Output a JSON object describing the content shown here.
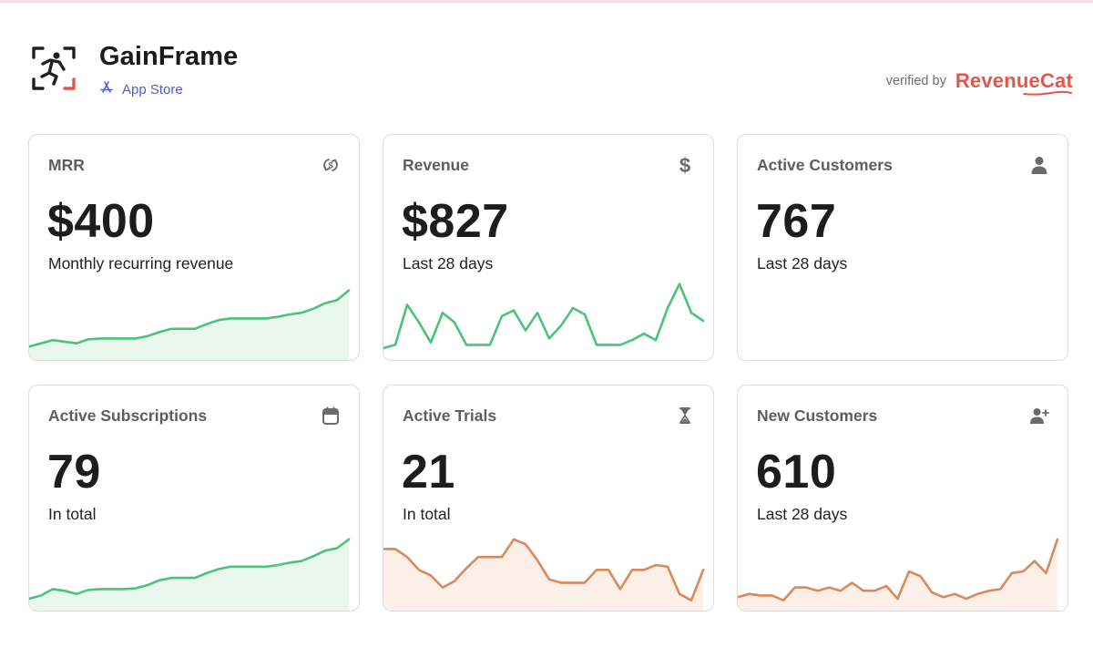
{
  "header": {
    "app_name": "GainFrame",
    "store_label": "App Store",
    "verified_label": "verified by",
    "verifier_brand": "RevenueCat"
  },
  "colors": {
    "accent_blue": "#4b5fd6",
    "brand_red": "#e2574c",
    "green_series": "#4cc27a",
    "orange_series": "#d98a5b"
  },
  "cards": [
    {
      "title": "MRR",
      "value": "$400",
      "subtitle": "Monthly recurring revenue",
      "icon": "refresh-dollar-icon"
    },
    {
      "title": "Revenue",
      "value": "$827",
      "subtitle": "Last 28 days",
      "icon": "dollar-icon"
    },
    {
      "title": "Active Customers",
      "value": "767",
      "subtitle": "Last 28 days",
      "icon": "user-icon"
    },
    {
      "title": "Active Subscriptions",
      "value": "79",
      "subtitle": "In total",
      "icon": "calendar-icon"
    },
    {
      "title": "Active Trials",
      "value": "21",
      "subtitle": "In total",
      "icon": "hourglass-icon"
    },
    {
      "title": "New Customers",
      "value": "610",
      "subtitle": "Last 28 days",
      "icon": "user-plus-icon"
    }
  ],
  "sparklines": {
    "mrr": [
      10,
      14,
      18,
      16,
      14,
      19,
      20,
      20,
      20,
      20,
      23,
      28,
      32,
      32,
      32,
      38,
      43,
      45,
      45,
      45,
      45,
      47,
      50,
      52,
      57,
      64,
      68,
      80
    ],
    "revenue": [
      8,
      12,
      62,
      40,
      15,
      52,
      40,
      12,
      12,
      12,
      48,
      55,
      30,
      52,
      20,
      36,
      58,
      50,
      12,
      12,
      12,
      18,
      26,
      18,
      58,
      88,
      52,
      42
    ],
    "active_subscriptions": [
      8,
      12,
      20,
      18,
      14,
      19,
      20,
      20,
      20,
      21,
      25,
      31,
      34,
      34,
      34,
      40,
      45,
      48,
      48,
      48,
      48,
      50,
      53,
      55,
      61,
      68,
      71,
      82
    ],
    "active_trials": [
      70,
      70,
      60,
      44,
      37,
      22,
      30,
      46,
      60,
      60,
      60,
      82,
      76,
      56,
      32,
      28,
      28,
      28,
      44,
      44,
      20,
      44,
      44,
      50,
      48,
      14,
      6,
      44
    ],
    "new_customers": [
      10,
      14,
      12,
      12,
      6,
      22,
      22,
      18,
      22,
      18,
      28,
      18,
      18,
      24,
      8,
      42,
      36,
      16,
      10,
      14,
      8,
      14,
      18,
      20,
      40,
      42,
      55,
      40,
      82
    ]
  }
}
